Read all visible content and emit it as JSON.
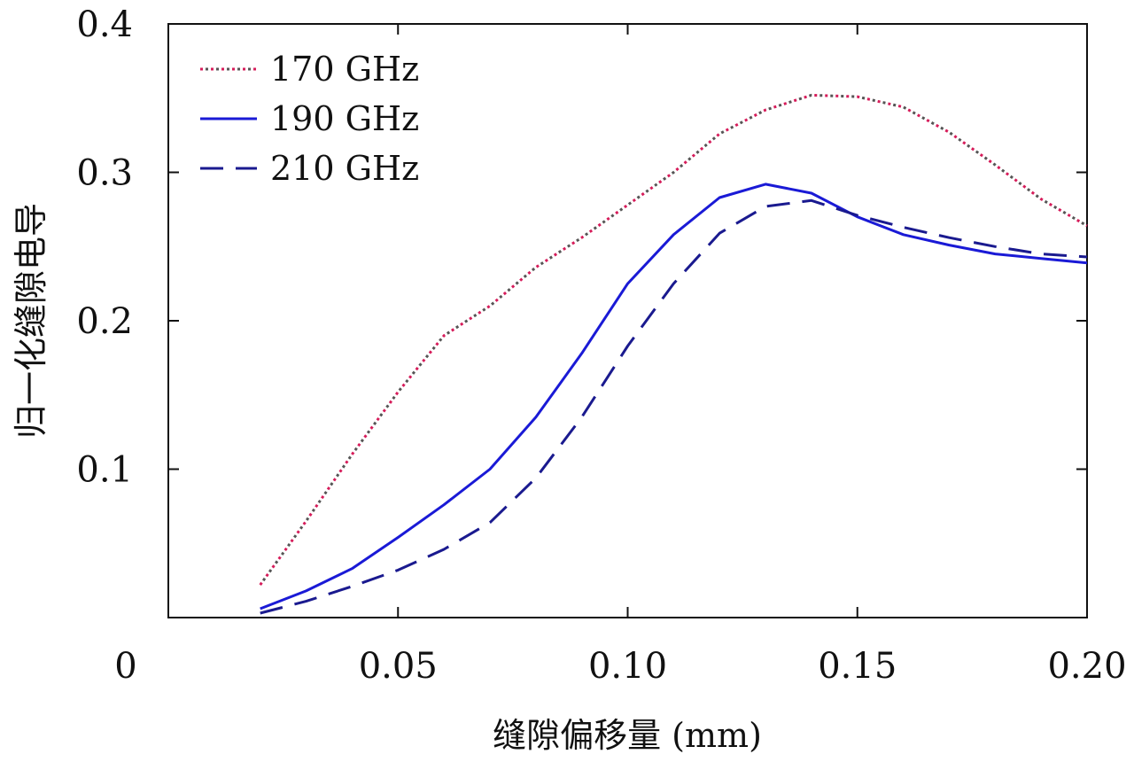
{
  "chart_data": {
    "type": "line",
    "title": "",
    "xlabel": "缝隙偏移量 (mm)",
    "ylabel": "归一化缝隙电导",
    "xlim": [
      0,
      0.2
    ],
    "ylim": [
      0,
      0.4
    ],
    "xticks": [
      {
        "value": 0,
        "label": "0"
      },
      {
        "value": 0.05,
        "label": "0.05"
      },
      {
        "value": 0.1,
        "label": "0.10"
      },
      {
        "value": 0.15,
        "label": "0.15"
      },
      {
        "value": 0.2,
        "label": "0.20"
      }
    ],
    "yticks": [
      {
        "value": 0.1,
        "label": "0.1"
      },
      {
        "value": 0.2,
        "label": "0.2"
      },
      {
        "value": 0.3,
        "label": "0.3"
      },
      {
        "value": 0.4,
        "label": "0.4"
      }
    ],
    "grid": false,
    "legend_position": "top-left",
    "series": [
      {
        "name": "170 GHz",
        "style": "dotted",
        "color": "#d61c5a",
        "color_alt": "#555555",
        "x": [
          0.02,
          0.03,
          0.04,
          0.05,
          0.06,
          0.07,
          0.08,
          0.09,
          0.1,
          0.11,
          0.12,
          0.13,
          0.14,
          0.15,
          0.16,
          0.17,
          0.18,
          0.19,
          0.2
        ],
        "y": [
          0.022,
          0.065,
          0.11,
          0.152,
          0.19,
          0.21,
          0.236,
          0.256,
          0.278,
          0.3,
          0.326,
          0.342,
          0.352,
          0.351,
          0.344,
          0.327,
          0.305,
          0.282,
          0.264
        ]
      },
      {
        "name": "190 GHz",
        "style": "solid",
        "color": "#1a1ad6",
        "x": [
          0.02,
          0.03,
          0.04,
          0.05,
          0.06,
          0.07,
          0.08,
          0.09,
          0.1,
          0.11,
          0.12,
          0.13,
          0.14,
          0.15,
          0.16,
          0.17,
          0.18,
          0.19,
          0.2
        ],
        "y": [
          0.006,
          0.018,
          0.033,
          0.054,
          0.076,
          0.1,
          0.135,
          0.178,
          0.225,
          0.258,
          0.283,
          0.292,
          0.286,
          0.27,
          0.258,
          0.251,
          0.245,
          0.242,
          0.239
        ]
      },
      {
        "name": "210 GHz",
        "style": "dashed",
        "color": "#1a1a8f",
        "x": [
          0.02,
          0.03,
          0.04,
          0.05,
          0.06,
          0.07,
          0.08,
          0.09,
          0.1,
          0.11,
          0.12,
          0.13,
          0.14,
          0.15,
          0.16,
          0.17,
          0.18,
          0.19,
          0.2
        ],
        "y": [
          0.003,
          0.011,
          0.021,
          0.032,
          0.046,
          0.064,
          0.094,
          0.135,
          0.183,
          0.225,
          0.259,
          0.277,
          0.281,
          0.271,
          0.263,
          0.256,
          0.25,
          0.245,
          0.243
        ]
      }
    ]
  }
}
